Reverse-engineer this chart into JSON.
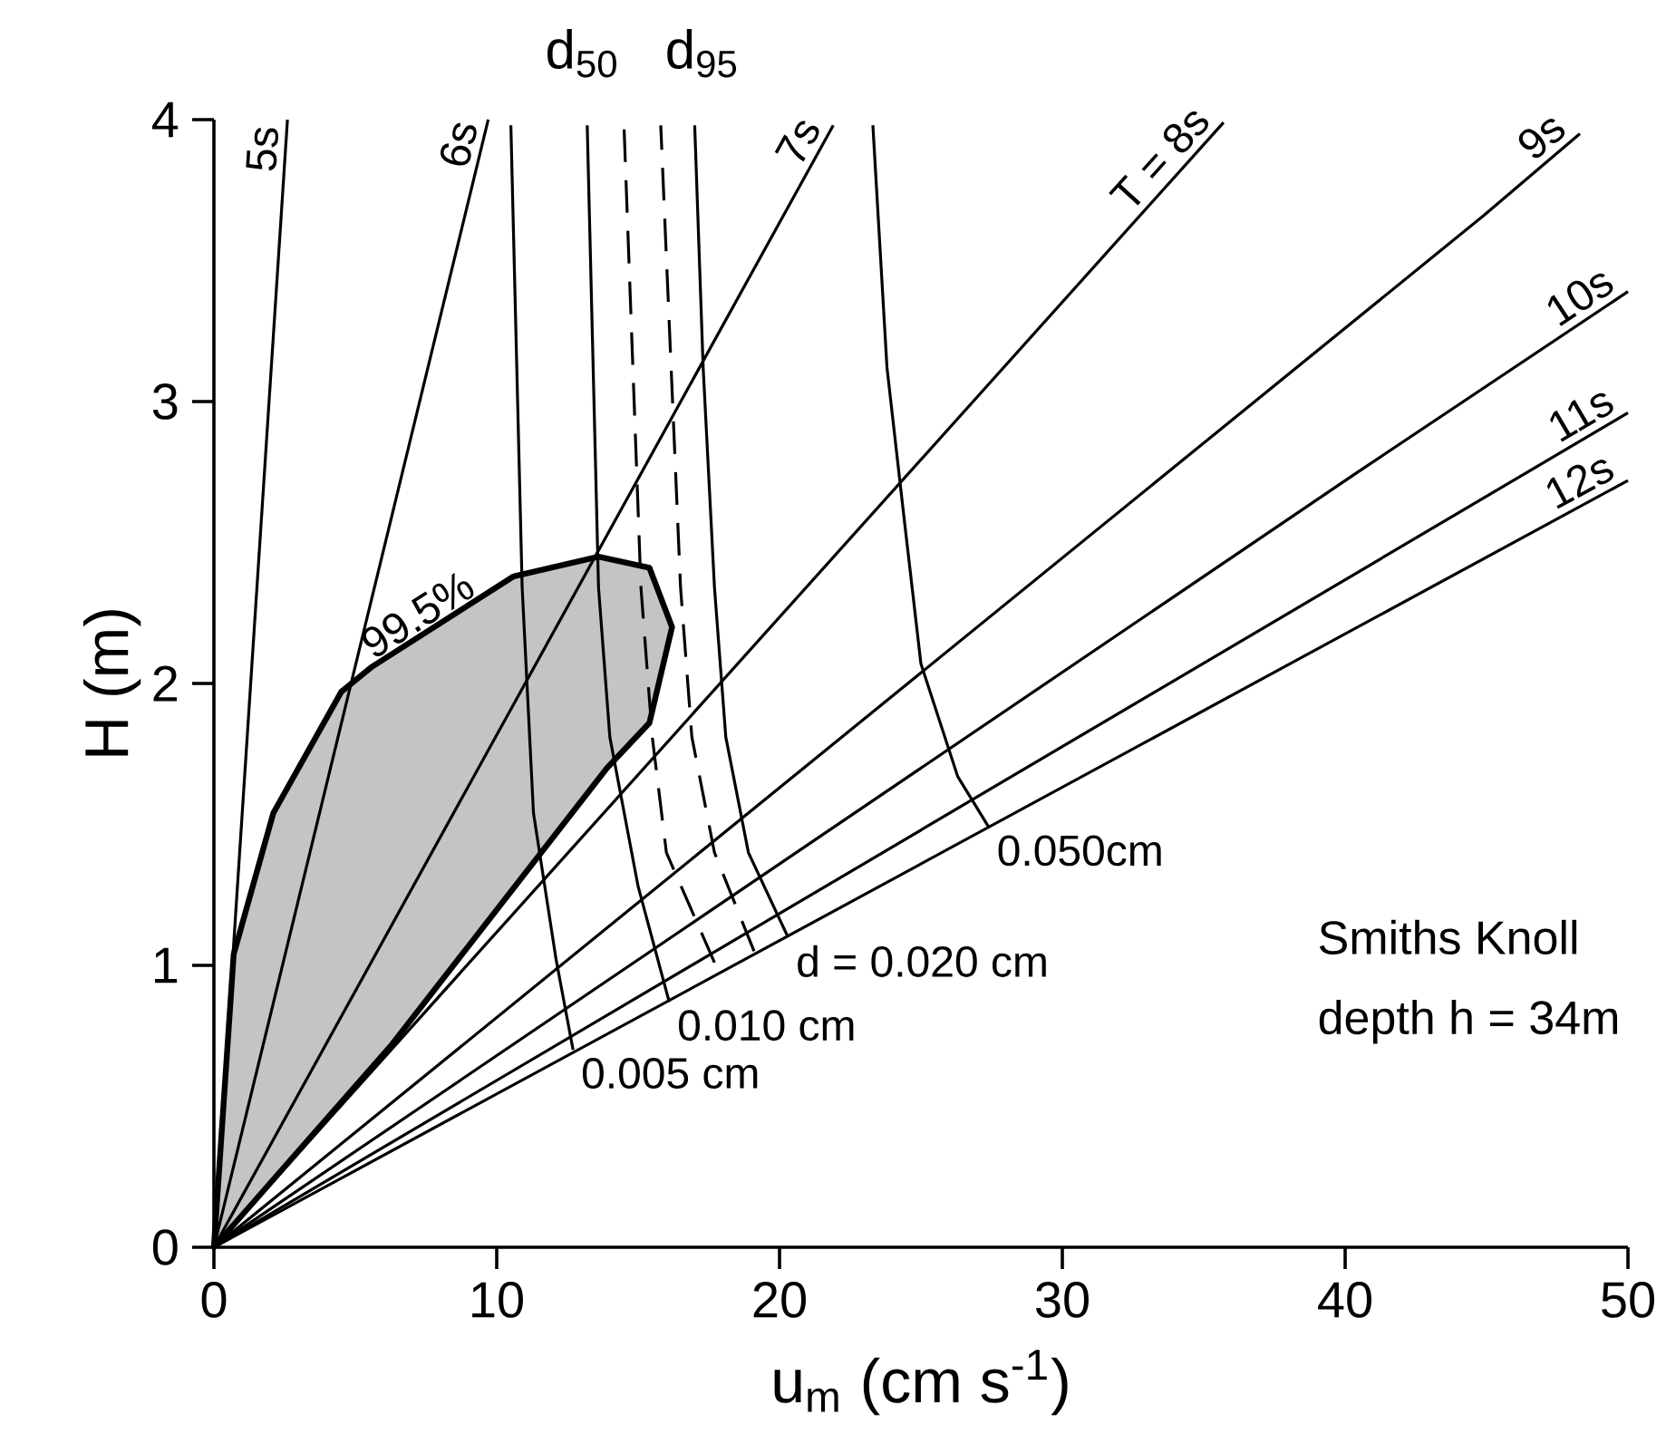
{
  "chart_data": {
    "type": "line",
    "xlabel": "u$_{m}$   (cm s$^{-1}$)",
    "ylabel": "H (m)",
    "xlim": [
      0,
      50
    ],
    "ylim": [
      0,
      4
    ],
    "xticks": [
      0,
      10,
      20,
      30,
      40,
      50
    ],
    "yticks": [
      0,
      1,
      2,
      3,
      4
    ],
    "legend": false,
    "grid": false,
    "series": [
      {
        "name": "99.5%",
        "type": "area",
        "color": "#c4c4c4",
        "x": [
          10.6,
          13.6,
          15.4,
          16.2,
          15.4,
          13.9,
          6.3,
          0,
          0.7,
          2.1,
          4.5,
          5.6
        ],
        "values": [
          2.38,
          2.45,
          2.41,
          2.2,
          1.86,
          1.7,
          0.72,
          0,
          1.04,
          1.54,
          1.97,
          2.06
        ]
      },
      {
        "name": "5s",
        "color": "#000000",
        "x": [
          0,
          2.6
        ],
        "values": [
          0,
          4
        ]
      },
      {
        "name": "6s",
        "color": "#000000",
        "x": [
          0,
          9.7
        ],
        "values": [
          0,
          4
        ]
      },
      {
        "name": "7s",
        "color": "#000000",
        "x": [
          0,
          21.9
        ],
        "values": [
          0,
          3.98
        ]
      },
      {
        "name": "T = 8s",
        "color": "#000000",
        "x": [
          0,
          35.7
        ],
        "values": [
          0,
          3.99
        ]
      },
      {
        "name": "9s",
        "color": "#000000",
        "x": [
          0,
          44.9,
          48.3
        ],
        "values": [
          0,
          3.66,
          3.95
        ]
      },
      {
        "name": "10s",
        "color": "#000000",
        "x": [
          0,
          40.3,
          50
        ],
        "values": [
          0,
          2.74,
          3.39
        ]
      },
      {
        "name": "11s",
        "color": "#000000",
        "x": [
          0,
          50
        ],
        "values": [
          0,
          2.96
        ]
      },
      {
        "name": "12s",
        "color": "#000000",
        "x": [
          0,
          50
        ],
        "values": [
          0,
          2.72
        ]
      },
      {
        "name": "0.005 cm",
        "color": "#000000",
        "x": [
          10.5,
          10.9,
          11.3,
          12.1,
          12.7
        ],
        "values": [
          3.98,
          2.34,
          1.54,
          1.02,
          0.7
        ]
      },
      {
        "name": "0.010 cm",
        "color": "#000000",
        "x": [
          13.2,
          13.6,
          14.0,
          15.0,
          16.1
        ],
        "values": [
          3.98,
          2.34,
          1.81,
          1.28,
          0.87
        ]
      },
      {
        "name": "d = 0.020 cm",
        "color": "#000000",
        "x": [
          17.0,
          17.3,
          17.7,
          18.1,
          18.9,
          20.3
        ],
        "values": [
          3.98,
          3.12,
          2.34,
          1.81,
          1.4,
          1.1
        ]
      },
      {
        "name": "0.050cm",
        "color": "#000000",
        "x": [
          23.3,
          23.8,
          24.4,
          25.0,
          26.3,
          27.4
        ],
        "values": [
          3.98,
          3.12,
          2.59,
          2.07,
          1.67,
          1.49
        ]
      },
      {
        "name": "d$_{50}$",
        "color": "#000000",
        "line_style": "dashed",
        "x": [
          17.7,
          16.0,
          15.5,
          15.1,
          14.5
        ],
        "values": [
          1.01,
          1.4,
          1.81,
          2.34,
          3.98
        ]
      },
      {
        "name": "d$_{95}$",
        "color": "#000000",
        "line_style": "dashed",
        "x": [
          19.1,
          17.7,
          16.9,
          16.5,
          15.8
        ],
        "values": [
          1.05,
          1.4,
          1.81,
          2.34,
          3.98
        ]
      }
    ],
    "annotations": [
      "Smiths Knoll",
      "depth h = 34m"
    ]
  }
}
